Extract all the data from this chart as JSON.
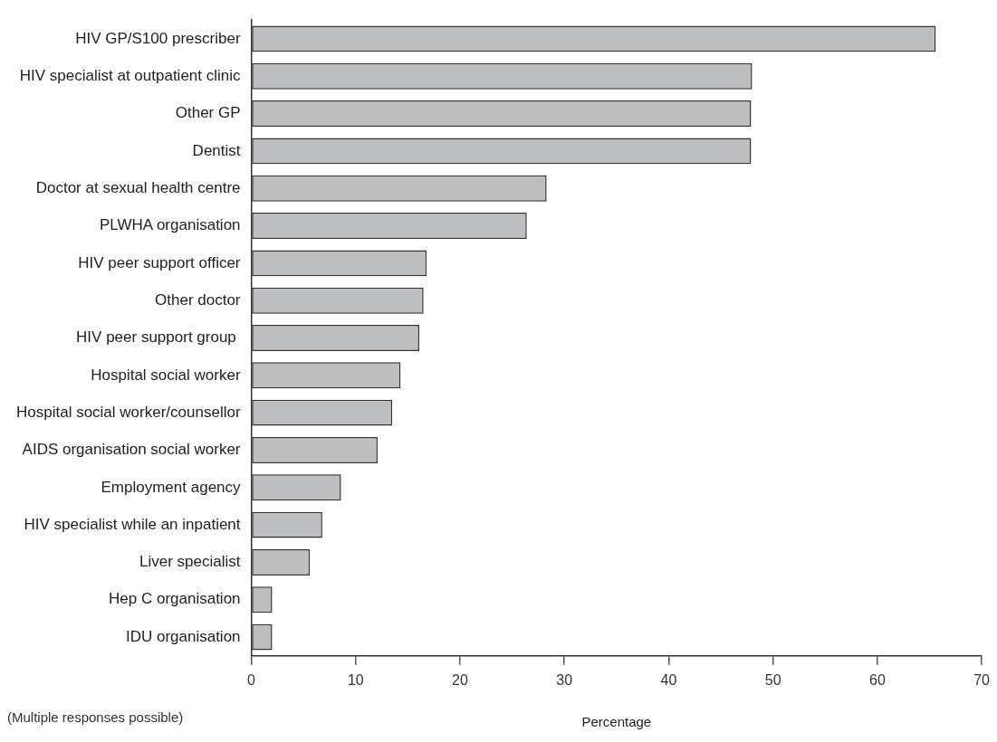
{
  "chart_data": {
    "type": "bar",
    "orientation": "horizontal",
    "xlabel": "Percentage",
    "categories": [
      "HIV GP/S100 prescriber",
      "HIV specialist at outpatient clinic",
      "Other GP",
      "Dentist",
      "Doctor at sexual health centre",
      "PLWHA organisation",
      "HIV peer support officer",
      "Other doctor",
      "HIV peer support group ",
      "Hospital social worker",
      "Hospital social worker/counsellor",
      "AIDS organisation social worker",
      "Employment agency",
      "HIV specialist while an inpatient",
      "Liver specialist",
      "Hep C organisation",
      "IDU organisation"
    ],
    "values": [
      65.6,
      48.0,
      47.9,
      47.9,
      28.3,
      26.4,
      16.8,
      16.5,
      16.1,
      14.3,
      13.5,
      12.1,
      8.6,
      6.8,
      5.6,
      2.0,
      2.0
    ],
    "color": "#bdbec0",
    "xlim": [
      0,
      70
    ],
    "xticks": [
      0,
      10,
      20,
      30,
      40,
      50,
      60,
      70
    ],
    "grid": false,
    "legend": false,
    "annotations": [
      "(Multiple responses possible)"
    ]
  }
}
